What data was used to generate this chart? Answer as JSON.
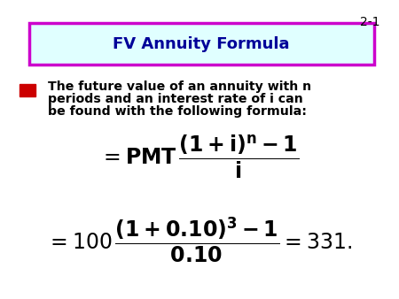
{
  "slide_number": "2-1",
  "title": "FV Annuity Formula",
  "title_box_facecolor": "#e0ffff",
  "title_box_edgecolor": "#cc00cc",
  "title_color": "#000099",
  "bullet_color": "#cc0000",
  "text_color": "#000000",
  "formula_color": "#000000",
  "bullet_line1": "The future value of an annuity with n",
  "bullet_line2": "periods and an interest rate of i can",
  "bullet_line3": "be found with the following formula:",
  "bg_color": "#ffffff"
}
